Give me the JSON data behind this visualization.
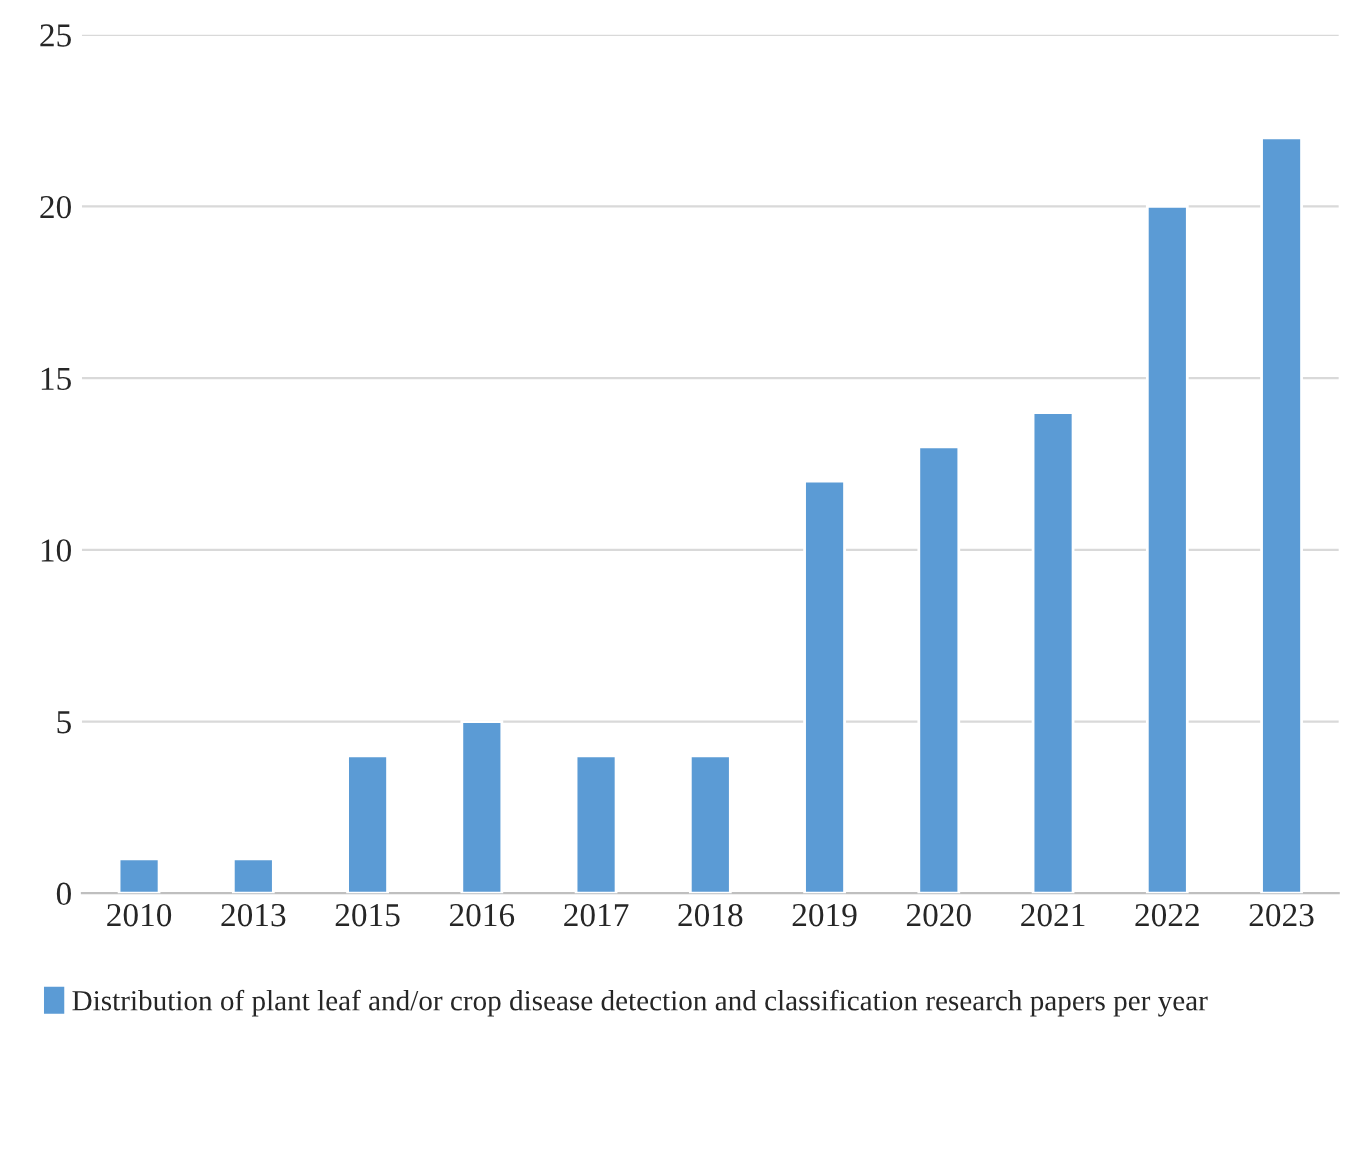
{
  "chart_data": {
    "type": "bar",
    "categories": [
      "2010",
      "2013",
      "2015",
      "2016",
      "2017",
      "2018",
      "2019",
      "2020",
      "2021",
      "2022",
      "2023"
    ],
    "series": [
      {
        "name": "Distribution of plant leaf and/or crop disease detection and classification research papers per year",
        "color": "#5b9bd5",
        "values": [
          1,
          1,
          4,
          5,
          4,
          4,
          12,
          13,
          14,
          20,
          22
        ]
      }
    ],
    "ylim": [
      0,
      25
    ],
    "yticks": [
      0,
      5,
      10,
      15,
      20,
      25
    ],
    "grid": "y",
    "legend": "bottom"
  }
}
